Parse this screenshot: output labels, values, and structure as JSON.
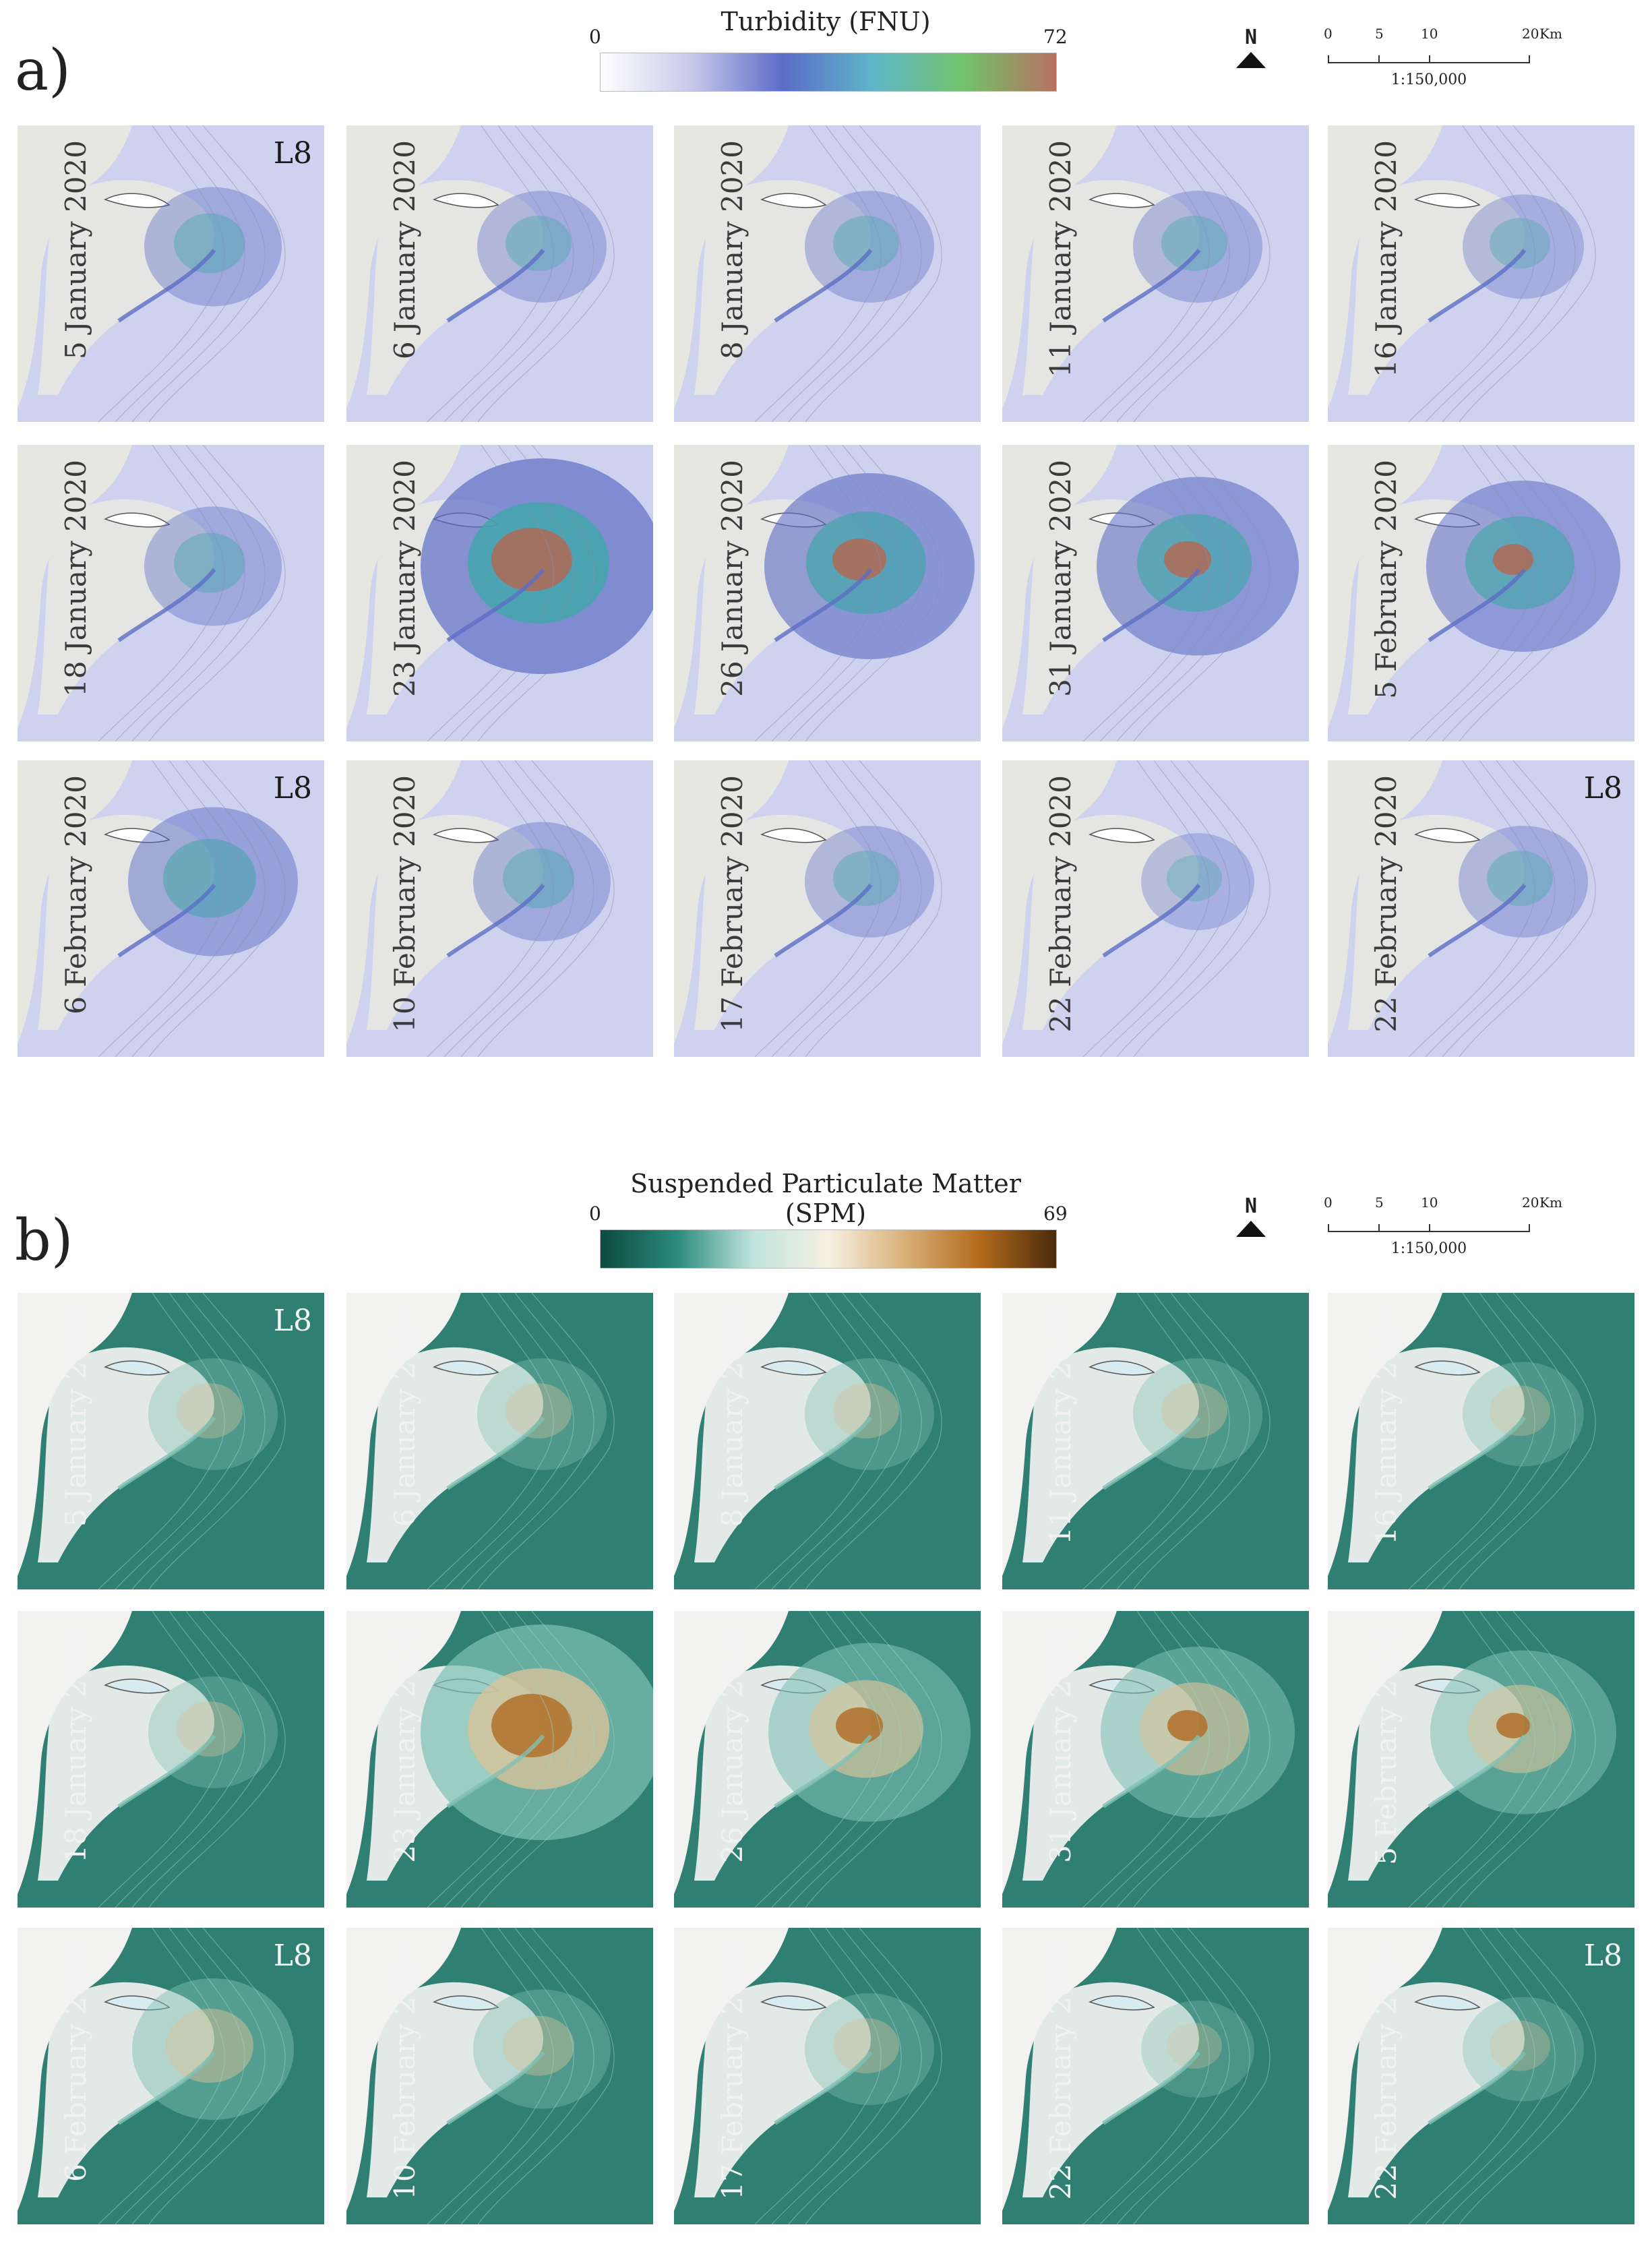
{
  "panels": [
    {
      "label": "a)",
      "colorbar": {
        "title": "Turbidity (FNU)",
        "min": "0",
        "max": "72",
        "colors": [
          "#ffffff",
          "#c7c9ea",
          "#5b6cc8",
          "#5fb6c8",
          "#72c26a",
          "#b87060"
        ]
      },
      "north": "N",
      "scalebar": {
        "ticks": [
          "0",
          "5",
          "10",
          "20",
          "Km"
        ],
        "ratio": "1:150,000"
      },
      "palette": {
        "water": "#cfd2ee",
        "plume_mid": "#5d6ec6",
        "plume_hi": "#3fa7a9",
        "peak": "#b06a55",
        "land": "#e7e7e2",
        "cloud": "#ffffff"
      },
      "scenes": [
        {
          "date": "5 January 2020",
          "sensor": "L8",
          "intensity": 0.35
        },
        {
          "date": "6 January 2020",
          "sensor": "",
          "intensity": 0.3
        },
        {
          "date": "8 January 2020",
          "sensor": "",
          "intensity": 0.3
        },
        {
          "date": "11 January 2020",
          "sensor": "",
          "intensity": 0.3
        },
        {
          "date": "16 January 2020",
          "sensor": "",
          "intensity": 0.25
        },
        {
          "date": "18 January 2020",
          "sensor": "",
          "intensity": 0.35
        },
        {
          "date": "23 January 2020",
          "sensor": "",
          "intensity": 1.0
        },
        {
          "date": "26 January 2020",
          "sensor": "",
          "intensity": 0.8
        },
        {
          "date": "31 January 2020",
          "sensor": "",
          "intensity": 0.75
        },
        {
          "date": "5 February 2020",
          "sensor": "",
          "intensity": 0.7
        },
        {
          "date": "6 February 2020",
          "sensor": "L8",
          "intensity": 0.55
        },
        {
          "date": "10 February 2020",
          "sensor": "",
          "intensity": 0.35
        },
        {
          "date": "17 February 2020",
          "sensor": "",
          "intensity": 0.3
        },
        {
          "date": "22 February 2020",
          "sensor": "",
          "intensity": 0.2
        },
        {
          "date": "22 February 2020",
          "sensor": "L8",
          "intensity": 0.3
        }
      ]
    },
    {
      "label": "b)",
      "colorbar": {
        "title": "Suspended Particulate Matter (SPM)",
        "min": "0",
        "max": "69",
        "colors": [
          "#0d4a3f",
          "#2a8a7c",
          "#bfe3dc",
          "#f7f1e2",
          "#d9b07a",
          "#b36a1c",
          "#4a2a0d"
        ]
      },
      "north": "N",
      "scalebar": {
        "ticks": [
          "0",
          "5",
          "10",
          "20",
          "Km"
        ],
        "ratio": "1:150,000"
      },
      "palette": {
        "water": "#2f7f72",
        "plume_mid": "#7fc0b4",
        "plume_hi": "#d8c39a",
        "peak": "#b0702a",
        "land": "#f2f2f0",
        "cloud": "#d7ebf1"
      },
      "scenes": [
        {
          "date": "5 January 2020",
          "sensor": "L8",
          "intensity": 0.3
        },
        {
          "date": "6 January 2020",
          "sensor": "",
          "intensity": 0.3
        },
        {
          "date": "8 January 2020",
          "sensor": "",
          "intensity": 0.3
        },
        {
          "date": "11 January 2020",
          "sensor": "",
          "intensity": 0.3
        },
        {
          "date": "16 January 2020",
          "sensor": "",
          "intensity": 0.25
        },
        {
          "date": "18 January 2020",
          "sensor": "",
          "intensity": 0.3
        },
        {
          "date": "23 January 2020",
          "sensor": "",
          "intensity": 1.0
        },
        {
          "date": "26 January 2020",
          "sensor": "",
          "intensity": 0.75
        },
        {
          "date": "31 January 2020",
          "sensor": "",
          "intensity": 0.7
        },
        {
          "date": "5 February 2020",
          "sensor": "",
          "intensity": 0.65
        },
        {
          "date": "6 February 2020",
          "sensor": "L8",
          "intensity": 0.5
        },
        {
          "date": "10 February 2020",
          "sensor": "",
          "intensity": 0.35
        },
        {
          "date": "17 February 2020",
          "sensor": "",
          "intensity": 0.3
        },
        {
          "date": "22 February 2020",
          "sensor": "",
          "intensity": 0.2
        },
        {
          "date": "22 February 2020",
          "sensor": "L8",
          "intensity": 0.25
        }
      ]
    }
  ]
}
